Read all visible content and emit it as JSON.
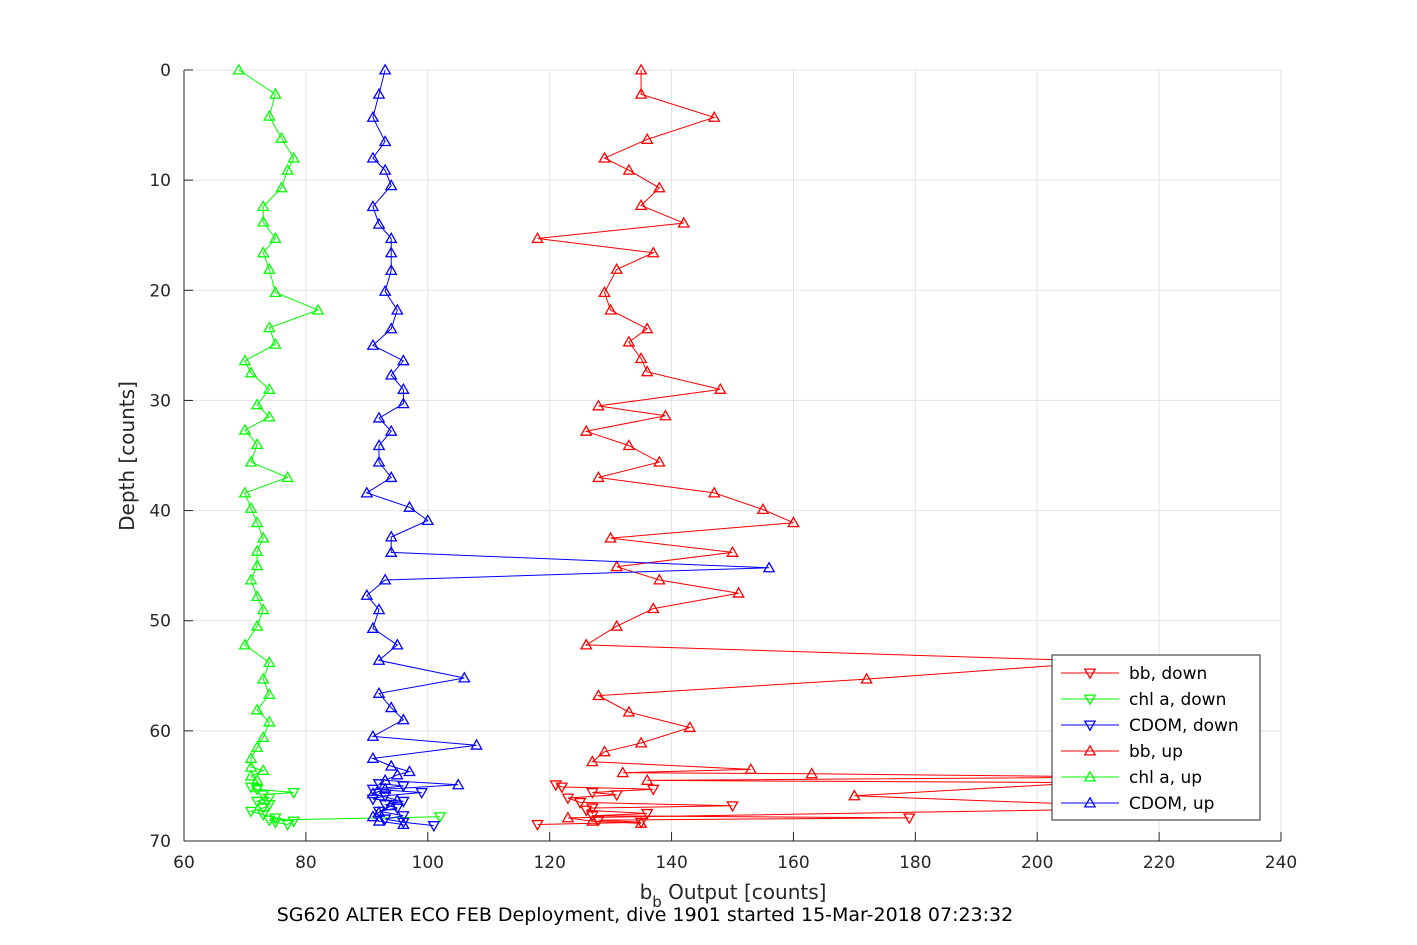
{
  "chart_data": {
    "type": "line",
    "xlabel": "b",
    "xlabel_sub": "b",
    "xlabel_rest": " Output [counts]",
    "ylabel": "Depth [counts]",
    "caption": "SG620 ALTER ECO FEB Deployment, dive 1901 started 15-Mar-2018 07:23:32",
    "xlim": [
      60,
      240
    ],
    "ylim": [
      0,
      70
    ],
    "y_reversed": true,
    "grid": true,
    "legend_position": "bottom-right",
    "xticks": [
      "60",
      "80",
      "100",
      "120",
      "140",
      "160",
      "180",
      "200",
      "220",
      "240"
    ],
    "yticks": [
      "0",
      "10",
      "20",
      "30",
      "40",
      "50",
      "60",
      "70"
    ],
    "series": [
      {
        "name": "bb, down",
        "color": "#ff0000",
        "marker": "triangle-down",
        "points": [
          [
            118,
            68.5
          ],
          [
            135,
            68.3
          ],
          [
            128,
            68.1
          ],
          [
            179,
            67.9
          ],
          [
            127,
            67.7
          ],
          [
            136,
            67.5
          ],
          [
            126,
            67.2
          ],
          [
            127,
            67.0
          ],
          [
            150,
            66.8
          ],
          [
            125,
            66.5
          ],
          [
            123,
            66.1
          ],
          [
            131,
            65.8
          ],
          [
            127,
            65.6
          ],
          [
            137,
            65.3
          ],
          [
            122,
            65.1
          ],
          [
            121,
            64.9
          ]
        ]
      },
      {
        "name": "chl a, down",
        "color": "#00ff00",
        "marker": "triangle-down",
        "points": [
          [
            102,
            67.8
          ],
          [
            74,
            68.1
          ],
          [
            75,
            68.3
          ],
          [
            77,
            68.5
          ],
          [
            78,
            68.2
          ],
          [
            75,
            67.9
          ],
          [
            73,
            67.6
          ],
          [
            71,
            67.3
          ],
          [
            73,
            67.0
          ],
          [
            74,
            66.7
          ],
          [
            72,
            66.4
          ],
          [
            74,
            66.1
          ],
          [
            73,
            65.8
          ],
          [
            78,
            65.6
          ],
          [
            72,
            65.3
          ],
          [
            71,
            65.1
          ]
        ]
      },
      {
        "name": "CDOM, down",
        "color": "#0000ff",
        "marker": "triangle-down",
        "points": [
          [
            101,
            68.6
          ],
          [
            96,
            68.3
          ],
          [
            93,
            68.0
          ],
          [
            96,
            67.7
          ],
          [
            92,
            67.3
          ],
          [
            95,
            67.0
          ],
          [
            93,
            66.7
          ],
          [
            96,
            66.4
          ],
          [
            91,
            66.2
          ],
          [
            93,
            65.9
          ],
          [
            99,
            65.6
          ],
          [
            91,
            65.3
          ],
          [
            96,
            65.0
          ],
          [
            92,
            64.8
          ]
        ]
      },
      {
        "name": "bb, up",
        "color": "#ff0000",
        "marker": "triangle-up",
        "points": [
          [
            135,
            0
          ],
          [
            135,
            2.2
          ],
          [
            147,
            4.3
          ],
          [
            136,
            6.3
          ],
          [
            129,
            8.0
          ],
          [
            133,
            9.1
          ],
          [
            138,
            10.7
          ],
          [
            135,
            12.3
          ],
          [
            142,
            13.9
          ],
          [
            118,
            15.3
          ],
          [
            137,
            16.6
          ],
          [
            131,
            18.1
          ],
          [
            129,
            20.2
          ],
          [
            130,
            21.8
          ],
          [
            136,
            23.5
          ],
          [
            133,
            24.7
          ],
          [
            135,
            26.2
          ],
          [
            136,
            27.4
          ],
          [
            148,
            29.0
          ],
          [
            128,
            30.5
          ],
          [
            139,
            31.4
          ],
          [
            126,
            32.8
          ],
          [
            133,
            34.1
          ],
          [
            138,
            35.6
          ],
          [
            128,
            37.0
          ],
          [
            147,
            38.4
          ],
          [
            155,
            39.9
          ],
          [
            160,
            41.1
          ],
          [
            130,
            42.5
          ],
          [
            150,
            43.8
          ],
          [
            131,
            45.1
          ],
          [
            138,
            46.3
          ],
          [
            151,
            47.5
          ],
          [
            137,
            48.9
          ],
          [
            131,
            50.5
          ],
          [
            126,
            52.2
          ],
          [
            212,
            53.7
          ],
          [
            172,
            55.3
          ],
          [
            128,
            56.8
          ],
          [
            133,
            58.3
          ],
          [
            143,
            59.7
          ],
          [
            135,
            61.1
          ],
          [
            129,
            61.9
          ],
          [
            127,
            62.8
          ],
          [
            153,
            63.5
          ],
          [
            132,
            63.8
          ],
          [
            163,
            63.9
          ],
          [
            216,
            64.2
          ],
          [
            136,
            64.5
          ],
          [
            208,
            64.7
          ],
          [
            170,
            65.9
          ],
          [
            223,
            67.0
          ],
          [
            123,
            67.9
          ],
          [
            127,
            68.2
          ],
          [
            135,
            68.4
          ]
        ]
      },
      {
        "name": "chl a, up",
        "color": "#00ff00",
        "marker": "triangle-up",
        "points": [
          [
            69,
            0
          ],
          [
            75,
            2.2
          ],
          [
            74,
            4.2
          ],
          [
            76,
            6.2
          ],
          [
            78,
            8.0
          ],
          [
            77,
            9.1
          ],
          [
            76,
            10.7
          ],
          [
            73,
            12.4
          ],
          [
            73,
            13.8
          ],
          [
            75,
            15.3
          ],
          [
            73,
            16.6
          ],
          [
            74,
            18.1
          ],
          [
            75,
            20.2
          ],
          [
            82,
            21.8
          ],
          [
            74,
            23.4
          ],
          [
            75,
            24.9
          ],
          [
            70,
            26.4
          ],
          [
            71,
            27.5
          ],
          [
            74,
            29.0
          ],
          [
            72,
            30.4
          ],
          [
            74,
            31.5
          ],
          [
            70,
            32.7
          ],
          [
            72,
            34.0
          ],
          [
            71,
            35.6
          ],
          [
            77,
            37.0
          ],
          [
            70,
            38.4
          ],
          [
            71,
            39.8
          ],
          [
            72,
            41.1
          ],
          [
            73,
            42.5
          ],
          [
            72,
            43.7
          ],
          [
            72,
            45.0
          ],
          [
            71,
            46.3
          ],
          [
            72,
            47.8
          ],
          [
            73,
            49.0
          ],
          [
            72,
            50.5
          ],
          [
            70,
            52.2
          ],
          [
            74,
            53.8
          ],
          [
            73,
            55.3
          ],
          [
            74,
            56.7
          ],
          [
            72,
            58.1
          ],
          [
            74,
            59.2
          ],
          [
            73,
            60.6
          ],
          [
            72,
            61.5
          ],
          [
            71,
            62.5
          ],
          [
            71,
            63.3
          ],
          [
            73,
            63.6
          ],
          [
            71,
            64.1
          ],
          [
            72,
            64.5
          ],
          [
            72,
            65.1
          ]
        ]
      },
      {
        "name": "CDOM, up",
        "color": "#0000ff",
        "marker": "triangle-up",
        "points": [
          [
            93,
            0
          ],
          [
            92,
            2.2
          ],
          [
            91,
            4.3
          ],
          [
            93,
            6.5
          ],
          [
            91,
            8.0
          ],
          [
            93,
            9.1
          ],
          [
            94,
            10.5
          ],
          [
            91,
            12.4
          ],
          [
            92,
            14.0
          ],
          [
            94,
            15.3
          ],
          [
            94,
            16.6
          ],
          [
            94,
            18.2
          ],
          [
            93,
            20.1
          ],
          [
            95,
            21.8
          ],
          [
            94,
            23.5
          ],
          [
            91,
            25.0
          ],
          [
            96,
            26.4
          ],
          [
            94,
            27.7
          ],
          [
            96,
            29.0
          ],
          [
            96,
            30.3
          ],
          [
            92,
            31.6
          ],
          [
            94,
            32.8
          ],
          [
            92,
            34.1
          ],
          [
            92,
            35.6
          ],
          [
            94,
            37.0
          ],
          [
            90,
            38.4
          ],
          [
            97,
            39.7
          ],
          [
            100,
            40.9
          ],
          [
            94,
            42.4
          ],
          [
            94,
            43.8
          ],
          [
            156,
            45.2
          ],
          [
            93,
            46.3
          ],
          [
            90,
            47.7
          ],
          [
            92,
            49.0
          ],
          [
            91,
            50.7
          ],
          [
            95,
            52.2
          ],
          [
            92,
            53.6
          ],
          [
            106,
            55.2
          ],
          [
            92,
            56.6
          ],
          [
            94,
            57.9
          ],
          [
            96,
            59.0
          ],
          [
            91,
            60.5
          ],
          [
            108,
            61.3
          ],
          [
            91,
            62.5
          ],
          [
            94,
            63.2
          ],
          [
            97,
            63.7
          ],
          [
            95,
            64.0
          ],
          [
            93,
            64.5
          ],
          [
            105,
            64.9
          ],
          [
            93,
            65.3
          ],
          [
            91,
            65.7
          ],
          [
            95,
            66.3
          ],
          [
            94,
            66.8
          ],
          [
            92,
            67.4
          ],
          [
            91,
            67.8
          ],
          [
            92,
            68.2
          ],
          [
            96,
            68.5
          ]
        ]
      }
    ]
  }
}
